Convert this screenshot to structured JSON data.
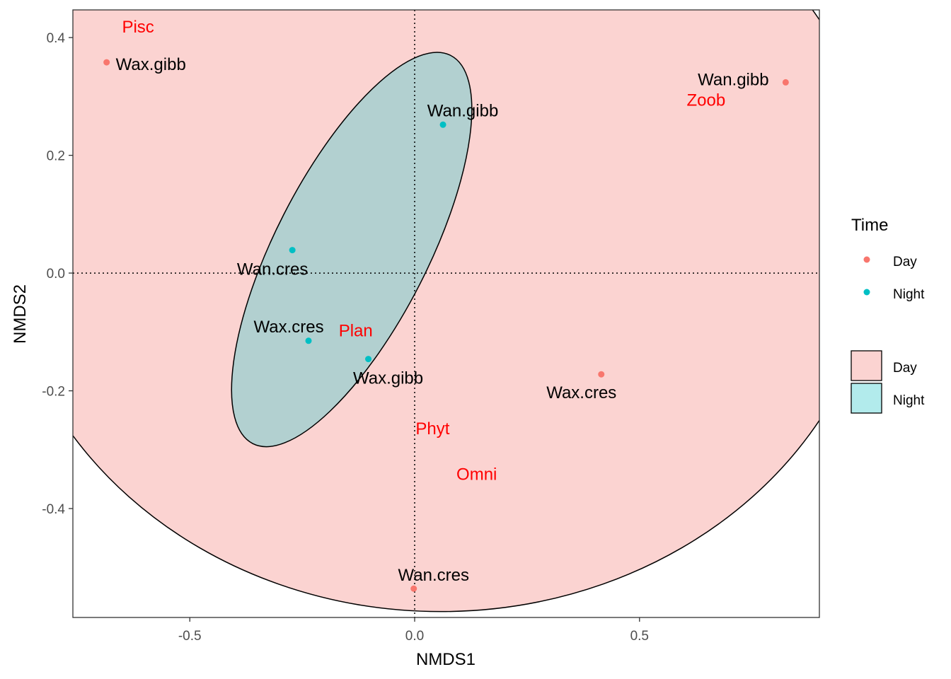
{
  "colors": {
    "day": "#F8766D",
    "night": "#00BFC4",
    "day_fill": "#FBD3D1",
    "night_fill": "#B2D0D0",
    "trait_text": "#FF0000"
  },
  "chart_data": {
    "type": "scatter",
    "xlabel": "NMDS1",
    "ylabel": "NMDS2",
    "xlim": [
      -0.76,
      0.9
    ],
    "ylim": [
      -0.585,
      0.447
    ],
    "x_ticks": [
      -0.5,
      0.0,
      0.5
    ],
    "x_tick_labels": [
      "-0.5",
      "0.0",
      "0.5"
    ],
    "y_ticks": [
      0.4,
      0.2,
      0.0,
      -0.2,
      -0.4
    ],
    "y_tick_labels": [
      "0.4",
      "0.2",
      "0.0",
      "-0.2",
      "-0.4"
    ],
    "reference_lines": {
      "x": 0,
      "y": 0,
      "style": "dotted"
    },
    "grid": false,
    "series": [
      {
        "name": "Day",
        "points": [
          {
            "x": -0.685,
            "y": 0.358,
            "label": "Wax.gibb"
          },
          {
            "x": 0.825,
            "y": 0.324,
            "label": "Wan.gibb"
          },
          {
            "x": 0.415,
            "y": -0.172,
            "label": "Wax.cres"
          },
          {
            "x": -0.002,
            "y": -0.536,
            "label": "Wan.cres"
          }
        ]
      },
      {
        "name": "Night",
        "points": [
          {
            "x": 0.063,
            "y": 0.252,
            "label": "Wan.gibb"
          },
          {
            "x": -0.272,
            "y": 0.039,
            "label": "Wan.cres"
          },
          {
            "x": -0.236,
            "y": -0.115,
            "label": "Wax.cres"
          },
          {
            "x": -0.103,
            "y": -0.146,
            "label": "Wax.gibb"
          }
        ]
      }
    ],
    "ellipses": [
      {
        "group": "Day",
        "cx": 0.058,
        "cy": 0.09,
        "rx": 0.98,
        "ry": 0.665,
        "angle": 0
      },
      {
        "group": "Night",
        "cx": -0.14,
        "cy": 0.04,
        "rx": 0.17,
        "ry": 0.37,
        "angle": 27
      }
    ],
    "trait_labels": [
      {
        "text": "Pisc",
        "x": -0.615,
        "y": 0.418
      },
      {
        "text": "Zoob",
        "x": 0.648,
        "y": 0.294
      },
      {
        "text": "Plan",
        "x": -0.131,
        "y": -0.098
      },
      {
        "text": "Phyt",
        "x": 0.04,
        "y": -0.264
      },
      {
        "text": "Omni",
        "x": 0.138,
        "y": -0.342
      }
    ],
    "legend": {
      "placement": "right",
      "points_title": "Time",
      "points_entries": [
        "Day",
        "Night"
      ],
      "fill_entries": [
        "Day",
        "Night"
      ]
    }
  }
}
